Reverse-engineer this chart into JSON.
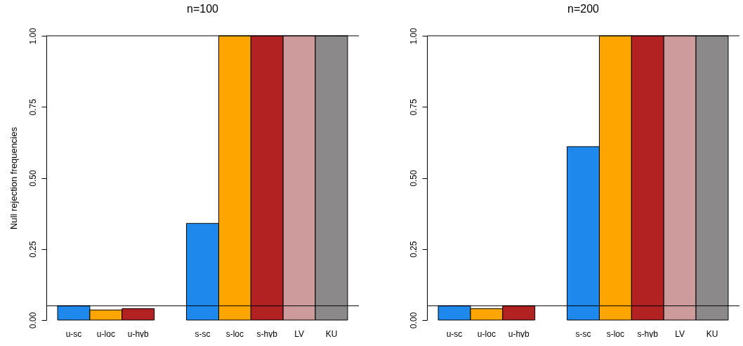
{
  "chart_data": [
    {
      "type": "bar",
      "title": "n=100",
      "ylabel": "Null rejection frequencies",
      "categories": [
        "u-sc",
        "u-loc",
        "u-hyb",
        null,
        "s-sc",
        "s-loc",
        "s-hyb",
        "LV",
        "KU"
      ],
      "values": [
        0.05,
        0.035,
        0.04,
        null,
        0.34,
        1,
        1,
        1,
        1
      ],
      "colors": [
        "#1e88ec",
        "#ffa500",
        "#b22222",
        "#ffffff",
        "#1e88ec",
        "#ffa500",
        "#b22222",
        "#cd9b9b",
        "#8b8989"
      ],
      "ylim": [
        0,
        1
      ],
      "yticks": [
        {
          "value": 0,
          "label": "0.00"
        },
        {
          "value": 0.25,
          "label": "0.25"
        },
        {
          "value": 0.5,
          "label": "0.50"
        },
        {
          "value": 0.75,
          "label": "0.75"
        },
        {
          "value": 1,
          "label": "1.00"
        }
      ],
      "grid": false,
      "ref_lines": [
        {
          "axis": "y",
          "value": 0.05
        },
        {
          "axis": "y",
          "value": 1
        }
      ]
    },
    {
      "type": "bar",
      "title": "n=200",
      "categories": [
        "u-sc",
        "u-loc",
        "u-hyb",
        null,
        "s-sc",
        "s-loc",
        "s-hyb",
        "LV",
        "KU"
      ],
      "values": [
        0.05,
        0.04,
        0.05,
        null,
        0.61,
        1,
        1,
        1,
        1
      ],
      "colors": [
        "#1e88ec",
        "#ffa500",
        "#b22222",
        "#ffffff",
        "#1e88ec",
        "#ffa500",
        "#b22222",
        "#cd9b9b",
        "#8b8989"
      ],
      "ylim": [
        0,
        1
      ],
      "yticks": [
        {
          "value": 0,
          "label": "0.00"
        },
        {
          "value": 0.25,
          "label": "0.25"
        },
        {
          "value": 0.5,
          "label": "0.50"
        },
        {
          "value": 0.75,
          "label": "0.75"
        },
        {
          "value": 1,
          "label": "1.00"
        }
      ],
      "grid": false,
      "ref_lines": [
        {
          "axis": "y",
          "value": 0.05
        },
        {
          "axis": "y",
          "value": 1
        }
      ]
    }
  ]
}
